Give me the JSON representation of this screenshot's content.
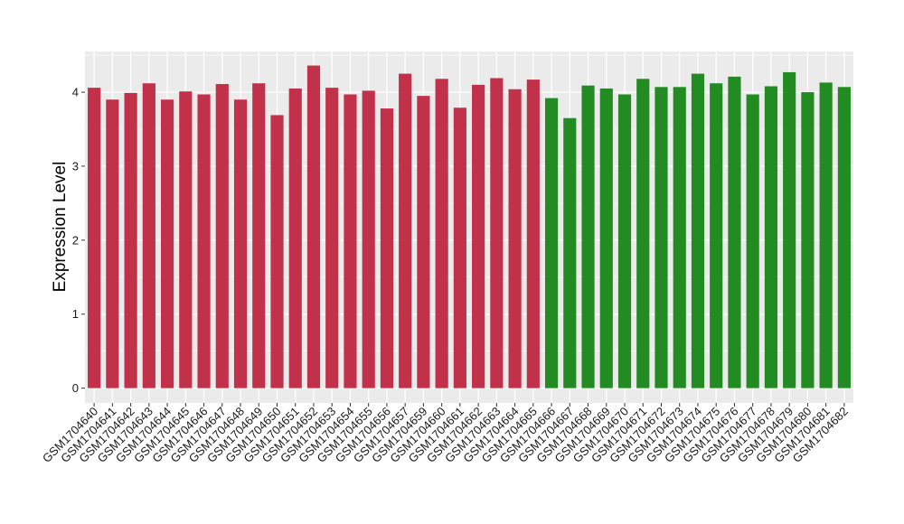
{
  "chart_data": {
    "type": "bar",
    "title": "",
    "xlabel": "",
    "ylabel": "Expression Level",
    "ylim": [
      -0.2,
      4.55
    ],
    "yticks": [
      0,
      1,
      2,
      3,
      4
    ],
    "grid": true,
    "categories": [
      "GSM1704640",
      "GSM1704641",
      "GSM1704642",
      "GSM1704643",
      "GSM1704644",
      "GSM1704645",
      "GSM1704646",
      "GSM1704647",
      "GSM1704648",
      "GSM1704649",
      "GSM1704650",
      "GSM1704651",
      "GSM1704652",
      "GSM1704653",
      "GSM1704654",
      "GSM1704655",
      "GSM1704656",
      "GSM1704657",
      "GSM1704659",
      "GSM1704660",
      "GSM1704661",
      "GSM1704662",
      "GSM1704663",
      "GSM1704664",
      "GSM1704665",
      "GSM1704666",
      "GSM1704667",
      "GSM1704668",
      "GSM1704669",
      "GSM1704670",
      "GSM1704671",
      "GSM1704672",
      "GSM1704673",
      "GSM1704674",
      "GSM1704675",
      "GSM1704676",
      "GSM1704677",
      "GSM1704678",
      "GSM1704679",
      "GSM1704680",
      "GSM1704681",
      "GSM1704682"
    ],
    "values": [
      4.06,
      3.9,
      3.99,
      4.12,
      3.9,
      4.01,
      3.97,
      4.11,
      3.9,
      4.12,
      3.69,
      4.05,
      4.36,
      4.06,
      3.97,
      4.02,
      3.78,
      4.25,
      3.95,
      4.18,
      3.79,
      4.1,
      4.19,
      4.04,
      4.17,
      3.92,
      3.65,
      4.09,
      4.05,
      3.97,
      4.18,
      4.07,
      4.07,
      4.25,
      4.12,
      4.21,
      3.97,
      4.08,
      4.27,
      4.0,
      4.13,
      4.07
    ],
    "bar_colors": [
      "#c1314a",
      "#c1314a",
      "#c1314a",
      "#c1314a",
      "#c1314a",
      "#c1314a",
      "#c1314a",
      "#c1314a",
      "#c1314a",
      "#c1314a",
      "#c1314a",
      "#c1314a",
      "#c1314a",
      "#c1314a",
      "#c1314a",
      "#c1314a",
      "#c1314a",
      "#c1314a",
      "#c1314a",
      "#c1314a",
      "#c1314a",
      "#c1314a",
      "#c1314a",
      "#c1314a",
      "#c1314a",
      "#228b22",
      "#228b22",
      "#228b22",
      "#228b22",
      "#228b22",
      "#228b22",
      "#228b22",
      "#228b22",
      "#228b22",
      "#228b22",
      "#228b22",
      "#228b22",
      "#228b22",
      "#228b22",
      "#228b22",
      "#228b22",
      "#228b22"
    ],
    "panel_color": "#ebebeb",
    "grid_color": "#ffffff"
  }
}
